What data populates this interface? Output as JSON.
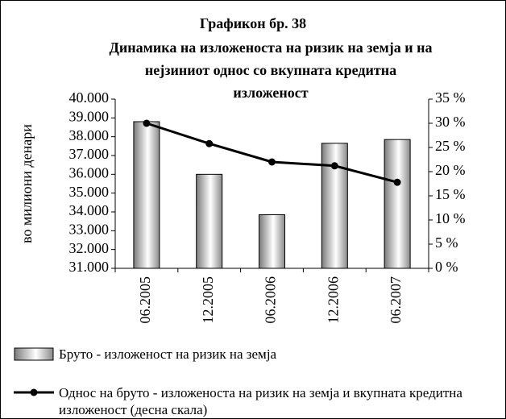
{
  "chart_data": {
    "type": "bar-line",
    "title": "Графикон бр. 38",
    "subtitle": [
      "Динамика на изложеноста на ризик на земја и на",
      "нејзиниот однос со вкупната кредитна",
      "изложеност"
    ],
    "ylabel": "во милиони денари",
    "categories": [
      "06.2005",
      "12.2005",
      "06.2006",
      "12.2006",
      "06.2007"
    ],
    "series": [
      {
        "name": "Бруто - изложеност на ризик на земја",
        "type": "bar",
        "color": "#808080",
        "values": [
          38800,
          36000,
          33850,
          37650,
          37850
        ]
      },
      {
        "name": "Однос на бруто - изложеноста на ризик на земја и вкупната кредитна изложеност (десна скала)",
        "type": "line",
        "axis": "y2",
        "color": "#000000",
        "values": [
          30,
          25.8,
          22,
          21.2,
          17.8
        ]
      }
    ],
    "ylim": [
      31000,
      40000
    ],
    "yticks": [
      {
        "value": 31000,
        "label": "31.000"
      },
      {
        "value": 32000,
        "label": "32.000"
      },
      {
        "value": 33000,
        "label": "33.000"
      },
      {
        "value": 34000,
        "label": "34.000"
      },
      {
        "value": 35000,
        "label": "35.000"
      },
      {
        "value": 36000,
        "label": "36.000"
      },
      {
        "value": 37000,
        "label": "37.000"
      },
      {
        "value": 38000,
        "label": "38.000"
      },
      {
        "value": 39000,
        "label": "39.000"
      },
      {
        "value": 40000,
        "label": "40.000"
      }
    ],
    "y2lim": [
      0,
      35
    ],
    "y2ticks": [
      {
        "value": 0,
        "label": "0 %"
      },
      {
        "value": 5,
        "label": "5 %"
      },
      {
        "value": 10,
        "label": "10 %"
      },
      {
        "value": 15,
        "label": "15 %"
      },
      {
        "value": 20,
        "label": "20 %"
      },
      {
        "value": 25,
        "label": "25 %"
      },
      {
        "value": 30,
        "label": "30 %"
      },
      {
        "value": 35,
        "label": "35 %"
      }
    ],
    "grid": false
  }
}
